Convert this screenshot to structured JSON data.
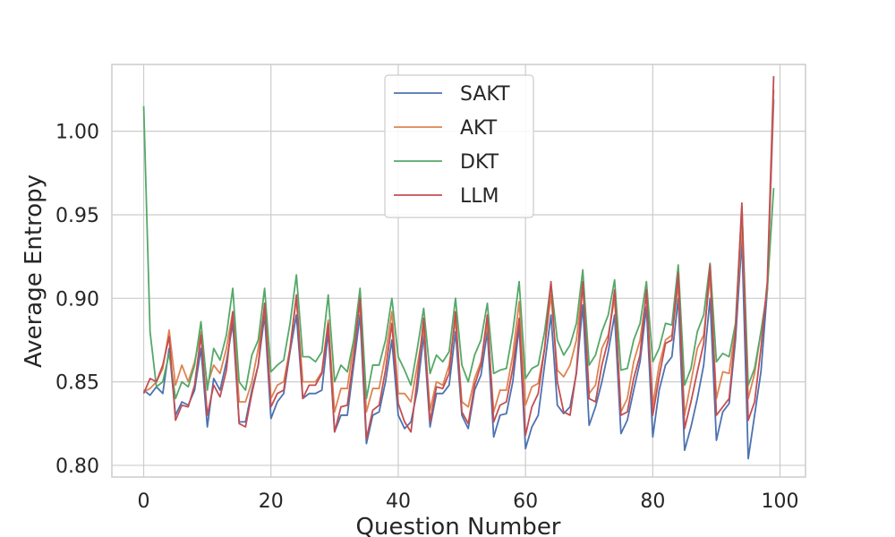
{
  "chart_data": {
    "type": "line",
    "title": "",
    "xlabel": "Question Number",
    "ylabel": "Average Entropy",
    "xlim": [
      -5,
      104
    ],
    "ylim": [
      0.793,
      1.04
    ],
    "xticks": [
      0,
      20,
      40,
      60,
      80,
      100
    ],
    "xtick_labels": [
      "0",
      "20",
      "40",
      "60",
      "80",
      "100"
    ],
    "yticks": [
      0.8,
      0.85,
      0.9,
      0.95,
      1.0
    ],
    "ytick_labels": [
      "0.80",
      "0.85",
      "0.90",
      "0.95",
      "1.00"
    ],
    "grid": true,
    "legend_placement": "top-center",
    "x": [
      0,
      1,
      2,
      3,
      4,
      5,
      6,
      7,
      8,
      9,
      10,
      11,
      12,
      13,
      14,
      15,
      16,
      17,
      18,
      19,
      20,
      21,
      22,
      23,
      24,
      25,
      26,
      27,
      28,
      29,
      30,
      31,
      32,
      33,
      34,
      35,
      36,
      37,
      38,
      39,
      40,
      41,
      42,
      43,
      44,
      45,
      46,
      47,
      48,
      49,
      50,
      51,
      52,
      53,
      54,
      55,
      56,
      57,
      58,
      59,
      60,
      61,
      62,
      63,
      64,
      65,
      66,
      67,
      68,
      69,
      70,
      71,
      72,
      73,
      74,
      75,
      76,
      77,
      78,
      79,
      80,
      81,
      82,
      83,
      84,
      85,
      86,
      87,
      88,
      89,
      90,
      91,
      92,
      93,
      94,
      95,
      96,
      97,
      98,
      99
    ],
    "series": [
      {
        "name": "SAKT",
        "color": "#4c72b0",
        "values": [
          0.845,
          0.842,
          0.847,
          0.843,
          0.87,
          0.83,
          0.838,
          0.836,
          0.845,
          0.87,
          0.823,
          0.852,
          0.845,
          0.862,
          0.885,
          0.826,
          0.826,
          0.845,
          0.86,
          0.89,
          0.828,
          0.838,
          0.843,
          0.868,
          0.89,
          0.84,
          0.843,
          0.843,
          0.845,
          0.88,
          0.82,
          0.83,
          0.83,
          0.86,
          0.89,
          0.813,
          0.83,
          0.832,
          0.85,
          0.875,
          0.83,
          0.822,
          0.826,
          0.845,
          0.878,
          0.823,
          0.843,
          0.843,
          0.848,
          0.88,
          0.83,
          0.822,
          0.845,
          0.854,
          0.88,
          0.817,
          0.83,
          0.831,
          0.85,
          0.883,
          0.81,
          0.823,
          0.83,
          0.86,
          0.89,
          0.836,
          0.831,
          0.835,
          0.855,
          0.896,
          0.824,
          0.835,
          0.85,
          0.868,
          0.89,
          0.819,
          0.827,
          0.845,
          0.862,
          0.895,
          0.817,
          0.845,
          0.86,
          0.865,
          0.9,
          0.809,
          0.823,
          0.84,
          0.86,
          0.9,
          0.815,
          0.832,
          0.837,
          0.875,
          0.935,
          0.804,
          0.83,
          0.856,
          0.905,
          1.019
        ]
      },
      {
        "name": "AKT",
        "color": "#dd8452",
        "values": [
          0.844,
          0.846,
          0.85,
          0.858,
          0.881,
          0.848,
          0.86,
          0.85,
          0.862,
          0.88,
          0.848,
          0.86,
          0.855,
          0.87,
          0.892,
          0.838,
          0.838,
          0.85,
          0.87,
          0.895,
          0.84,
          0.848,
          0.85,
          0.87,
          0.9,
          0.85,
          0.85,
          0.85,
          0.856,
          0.887,
          0.832,
          0.846,
          0.846,
          0.873,
          0.896,
          0.832,
          0.846,
          0.846,
          0.866,
          0.892,
          0.843,
          0.843,
          0.838,
          0.86,
          0.882,
          0.833,
          0.85,
          0.848,
          0.86,
          0.887,
          0.838,
          0.835,
          0.852,
          0.862,
          0.885,
          0.832,
          0.845,
          0.845,
          0.866,
          0.898,
          0.836,
          0.847,
          0.849,
          0.87,
          0.902,
          0.857,
          0.853,
          0.86,
          0.875,
          0.91,
          0.843,
          0.848,
          0.87,
          0.878,
          0.9,
          0.832,
          0.84,
          0.862,
          0.875,
          0.902,
          0.836,
          0.86,
          0.875,
          0.878,
          0.908,
          0.83,
          0.85,
          0.87,
          0.878,
          0.913,
          0.84,
          0.856,
          0.855,
          0.882,
          0.945,
          0.84,
          0.855,
          0.88,
          0.905,
          1.025
        ]
      },
      {
        "name": "DKT",
        "color": "#55a868",
        "values": [
          1.015,
          0.88,
          0.847,
          0.85,
          0.867,
          0.84,
          0.85,
          0.847,
          0.86,
          0.886,
          0.845,
          0.87,
          0.863,
          0.878,
          0.906,
          0.85,
          0.845,
          0.866,
          0.875,
          0.906,
          0.856,
          0.86,
          0.863,
          0.885,
          0.914,
          0.865,
          0.865,
          0.862,
          0.868,
          0.902,
          0.85,
          0.86,
          0.856,
          0.875,
          0.906,
          0.84,
          0.86,
          0.86,
          0.875,
          0.9,
          0.865,
          0.857,
          0.848,
          0.87,
          0.894,
          0.855,
          0.866,
          0.862,
          0.868,
          0.9,
          0.86,
          0.85,
          0.866,
          0.875,
          0.897,
          0.855,
          0.857,
          0.858,
          0.88,
          0.91,
          0.852,
          0.858,
          0.86,
          0.88,
          0.909,
          0.875,
          0.866,
          0.872,
          0.885,
          0.917,
          0.86,
          0.866,
          0.88,
          0.89,
          0.911,
          0.857,
          0.858,
          0.875,
          0.885,
          0.91,
          0.862,
          0.87,
          0.885,
          0.884,
          0.92,
          0.848,
          0.858,
          0.88,
          0.89,
          0.921,
          0.862,
          0.867,
          0.865,
          0.885,
          0.955,
          0.848,
          0.858,
          0.88,
          0.905,
          0.966
        ]
      },
      {
        "name": "LLM",
        "color": "#c44e52",
        "values": [
          0.843,
          0.852,
          0.85,
          0.86,
          0.877,
          0.827,
          0.836,
          0.835,
          0.848,
          0.878,
          0.83,
          0.848,
          0.841,
          0.857,
          0.892,
          0.825,
          0.823,
          0.843,
          0.86,
          0.897,
          0.835,
          0.843,
          0.845,
          0.87,
          0.902,
          0.84,
          0.848,
          0.848,
          0.855,
          0.885,
          0.82,
          0.835,
          0.836,
          0.865,
          0.9,
          0.816,
          0.833,
          0.836,
          0.857,
          0.885,
          0.837,
          0.826,
          0.82,
          0.852,
          0.888,
          0.826,
          0.847,
          0.846,
          0.855,
          0.892,
          0.832,
          0.825,
          0.848,
          0.86,
          0.89,
          0.826,
          0.836,
          0.838,
          0.858,
          0.888,
          0.818,
          0.835,
          0.843,
          0.87,
          0.91,
          0.85,
          0.832,
          0.83,
          0.856,
          0.91,
          0.84,
          0.838,
          0.86,
          0.875,
          0.905,
          0.83,
          0.832,
          0.852,
          0.866,
          0.905,
          0.83,
          0.853,
          0.873,
          0.875,
          0.915,
          0.822,
          0.838,
          0.856,
          0.873,
          0.92,
          0.83,
          0.835,
          0.84,
          0.88,
          0.957,
          0.827,
          0.838,
          0.87,
          0.91,
          1.033
        ]
      }
    ]
  }
}
